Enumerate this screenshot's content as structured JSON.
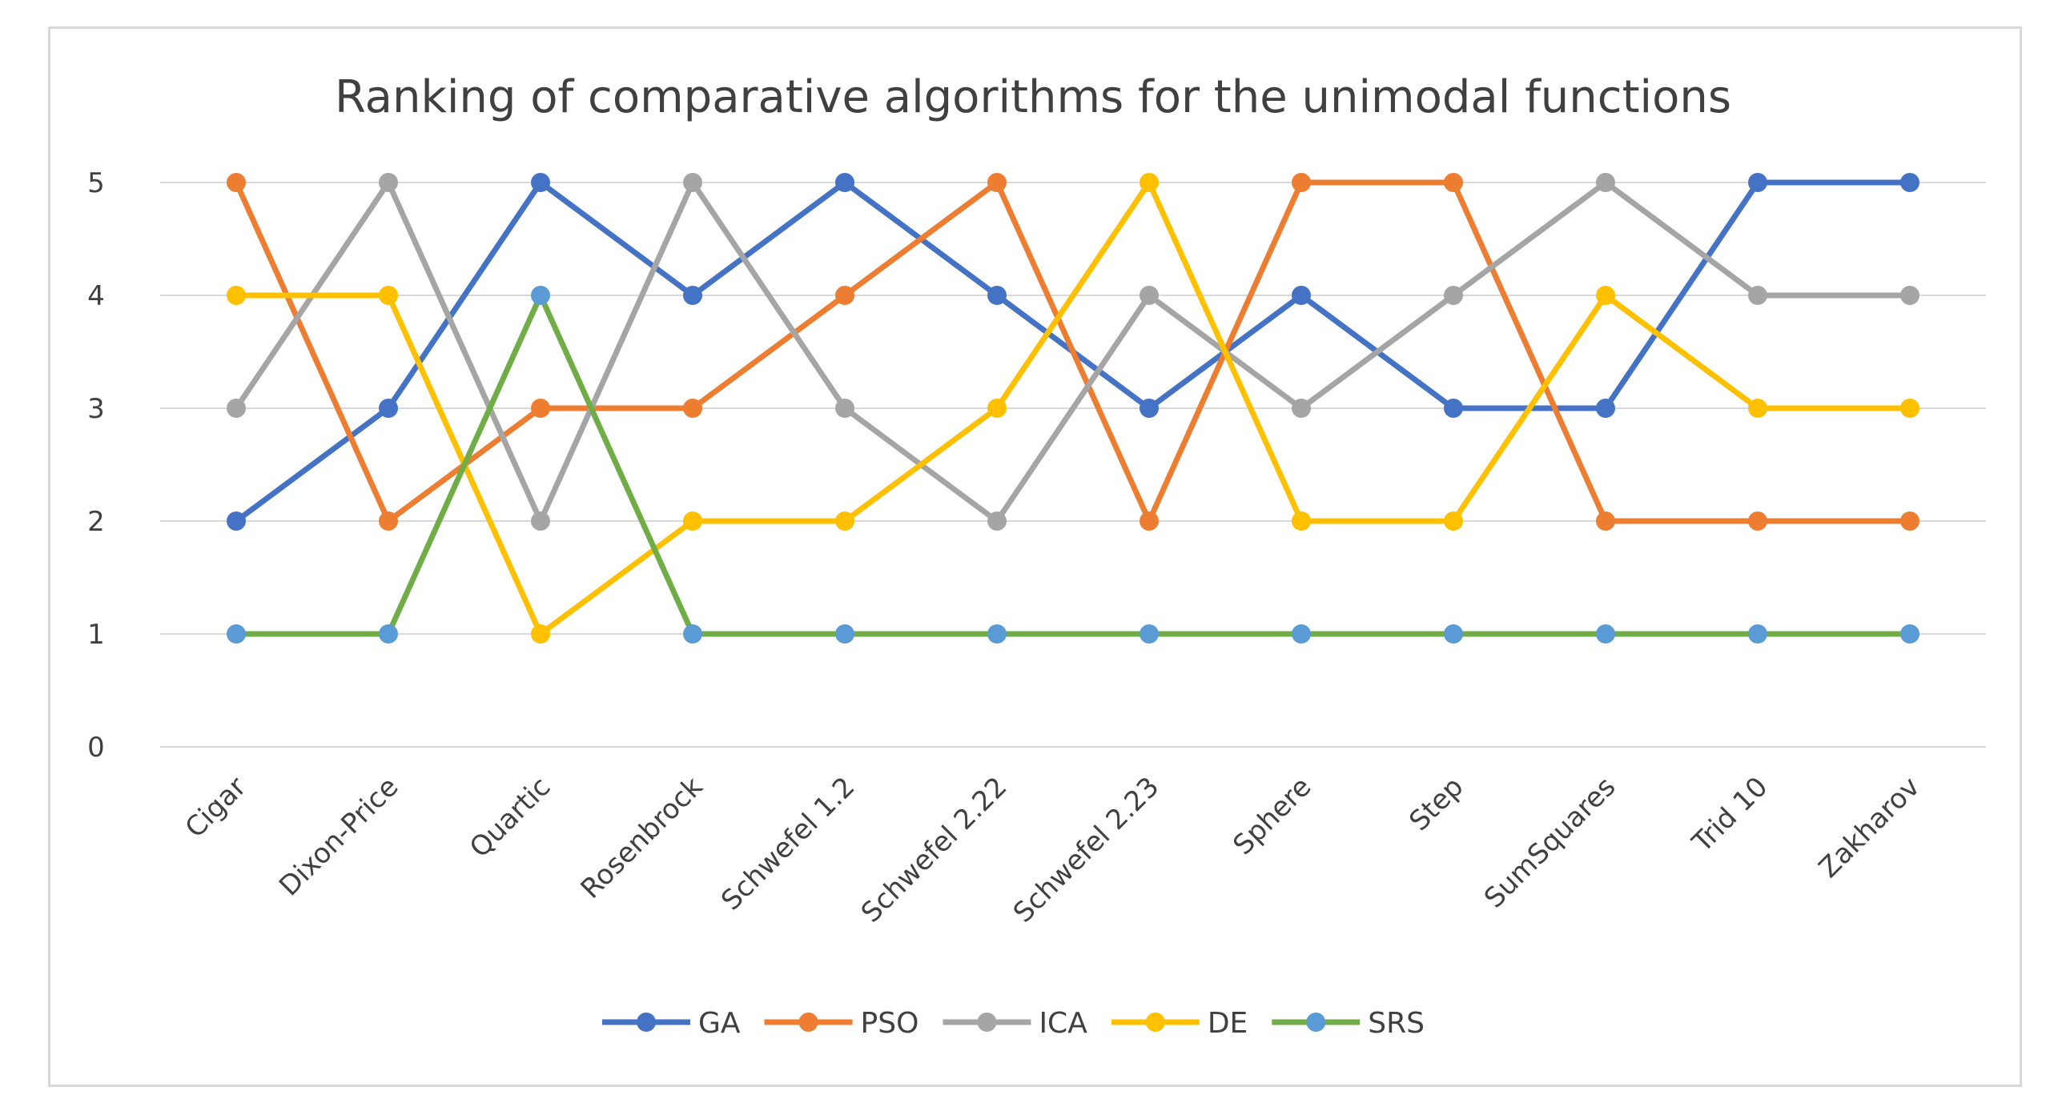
{
  "chart_data": {
    "type": "line",
    "title": "Ranking of comparative algorithms for the unimodal functions",
    "xlabel": "",
    "ylabel": "",
    "categories": [
      "Cigar",
      "Dixon-Price",
      "Quartic",
      "Rosenbrock",
      "Schwefel 1.2",
      "Schwefel 2.22",
      "Schwefel 2.23",
      "Sphere",
      "Step",
      "SumSquares",
      "Trid 10",
      "Zakharov"
    ],
    "yticks": [
      "0",
      "1",
      "2",
      "3",
      "4",
      "5"
    ],
    "ylim": [
      0,
      5
    ],
    "grid": true,
    "legend_position": "bottom",
    "series": [
      {
        "name": "GA",
        "color": "#4472c4",
        "values": [
          2,
          3,
          5,
          4,
          5,
          4,
          3,
          4,
          3,
          3,
          5,
          5
        ]
      },
      {
        "name": "PSO",
        "color": "#ed7d31",
        "values": [
          5,
          2,
          3,
          3,
          4,
          5,
          2,
          5,
          5,
          2,
          2,
          2
        ]
      },
      {
        "name": "ICA",
        "color": "#a5a5a5",
        "values": [
          3,
          5,
          2,
          5,
          3,
          2,
          4,
          3,
          4,
          5,
          4,
          4
        ]
      },
      {
        "name": "DE",
        "color": "#ffc000",
        "values": [
          4,
          4,
          1,
          2,
          2,
          3,
          5,
          2,
          2,
          4,
          3,
          3
        ]
      },
      {
        "name": "SRS",
        "color": "#70ad47",
        "marker_color": "#5b9bd5",
        "values": [
          1,
          1,
          4,
          1,
          1,
          1,
          1,
          1,
          1,
          1,
          1,
          1
        ]
      }
    ]
  }
}
